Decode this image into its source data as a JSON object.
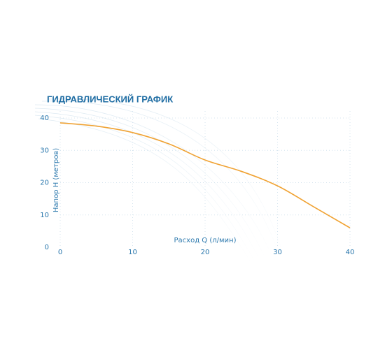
{
  "chart_data": {
    "type": "line",
    "title": "ГИДРАВЛИЧЕСКИЙ ГРАФИК",
    "x_label": "Расход Q (л/мин)",
    "y_label": "Напор Н (метров)",
    "x": [
      0,
      5,
      10,
      15,
      20,
      25,
      30,
      35,
      40
    ],
    "series": [
      {
        "name": null,
        "color": "#f0a232",
        "values": [
          38.5,
          37.5,
          35.5,
          32,
          27,
          23.5,
          19,
          12.5,
          6
        ]
      }
    ],
    "xlim": [
      0,
      40
    ],
    "xticks": [
      0,
      10,
      20,
      30,
      40
    ],
    "ylim": [
      0,
      40
    ],
    "yticks": [
      0,
      10,
      20,
      30,
      40
    ],
    "grid": true
  }
}
